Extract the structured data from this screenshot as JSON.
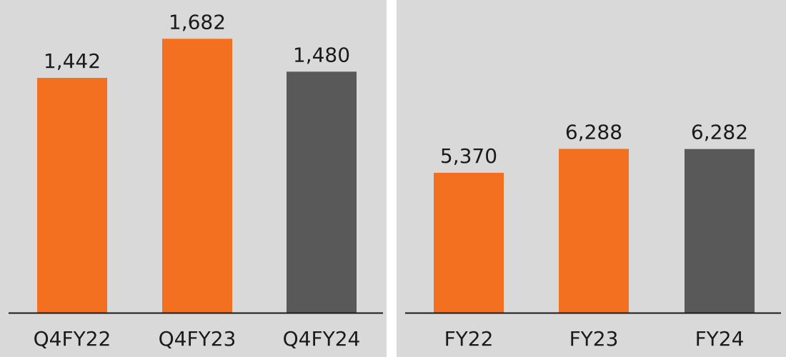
{
  "colors": {
    "background": "#d9d9d9",
    "separator": "#ffffff",
    "accent_orange": "#f37021",
    "dark_gray": "#595959",
    "axis": "#1a1a1a",
    "text": "#1a1a1a"
  },
  "chart_data": [
    {
      "type": "bar",
      "title": "",
      "xlabel": "",
      "ylabel": "",
      "categories": [
        "Q4FY22",
        "Q4FY23",
        "Q4FY24"
      ],
      "values": [
        1442,
        1682,
        1480
      ],
      "value_labels": [
        "1,442",
        "1,682",
        "1,480"
      ],
      "bar_colors": [
        "#f37021",
        "#f37021",
        "#595959"
      ],
      "ylim": [
        0,
        1920
      ],
      "grid": false,
      "legend": "none"
    },
    {
      "type": "bar",
      "title": "",
      "xlabel": "",
      "ylabel": "",
      "categories": [
        "FY22",
        "FY23",
        "FY24"
      ],
      "values": [
        5370,
        6288,
        6282
      ],
      "value_labels": [
        "5,370",
        "6,288",
        "6,282"
      ],
      "bar_colors": [
        "#f37021",
        "#f37021",
        "#595959"
      ],
      "ylim": [
        0,
        12000
      ],
      "grid": false,
      "legend": "none"
    }
  ]
}
